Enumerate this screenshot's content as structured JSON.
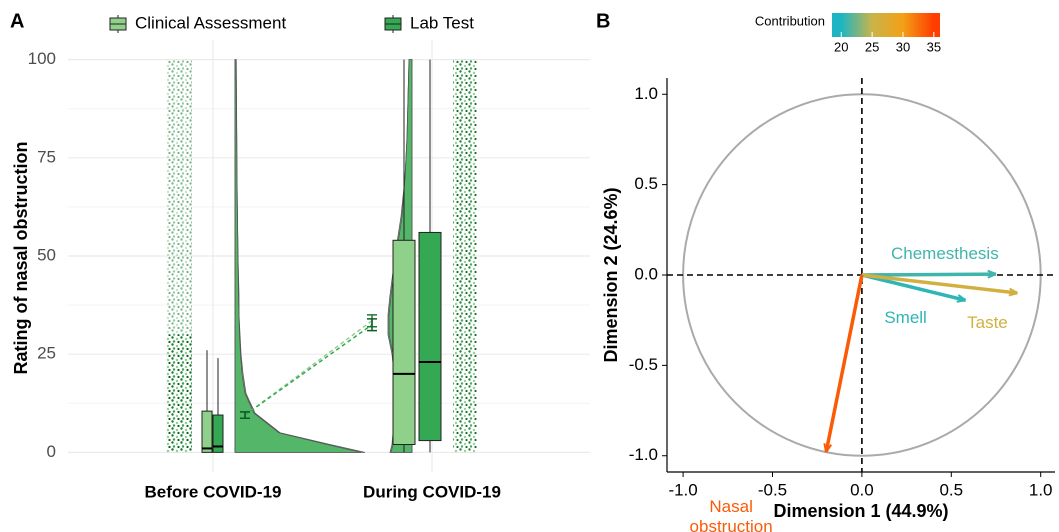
{
  "chart_data": [
    {
      "type": "raincloud",
      "panel_label": "A",
      "ylabel": "Rating of nasal obstruction",
      "categories": [
        "Before COVID-19",
        "During COVID-19"
      ],
      "ylim": [
        -5,
        105
      ],
      "yticks": [
        0,
        25,
        50,
        75,
        100
      ],
      "grid": true,
      "legend": "top",
      "density_y": [
        0,
        2,
        5,
        10,
        15,
        20,
        25,
        30,
        35,
        40,
        50,
        60,
        70,
        80,
        90,
        100
      ],
      "series": [
        {
          "name": "Clinical Assessment",
          "color": "#8fd18a",
          "point_color": "#1e7b34",
          "whisker_low": [
            0,
            0
          ],
          "q1": [
            0,
            2
          ],
          "median": [
            1,
            20
          ],
          "q3": [
            10.5,
            54
          ],
          "whisker_high": [
            26,
            100
          ],
          "mean": [
            9.5,
            33.5
          ],
          "mean_error": [
            0.8,
            1.5
          ],
          "density": [
            [
              130,
              95,
              45,
              20,
              11,
              8,
              6,
              5,
              4,
              4,
              3,
              2.5,
              2,
              1.8,
              1.5,
              1.2
            ],
            [
              22,
              20,
              19,
              19,
              18,
              18,
              20,
              24,
              24,
              22,
              17,
              11,
              7,
              5,
              4,
              3
            ]
          ]
        },
        {
          "name": "Lab Test",
          "color": "#35a853",
          "point_color": "#0f5e26",
          "whisker_low": [
            0,
            0
          ],
          "q1": [
            0,
            3
          ],
          "median": [
            1.5,
            23
          ],
          "q3": [
            9.5,
            56
          ],
          "whisker_high": [
            24,
            100
          ],
          "mean": [
            9.5,
            32.5
          ],
          "mean_error": [
            0.8,
            1.5
          ],
          "density": [
            [
              126,
              92,
              44,
              19,
              10,
              7,
              5.5,
              4.5,
              4,
              3.5,
              3,
              2.4,
              2,
              1.7,
              1.4,
              1.1
            ],
            [
              21,
              19,
              18,
              18,
              17,
              17,
              19,
              23,
              23,
              21,
              16,
              10,
              7,
              5,
              4,
              3
            ]
          ]
        }
      ]
    },
    {
      "type": "vector",
      "panel_label": "B",
      "xlabel": "Dimension 1 (44.9%)",
      "ylabel": "Dimension 2 (24.6%)",
      "xlim": [
        -1.09,
        1.08
      ],
      "ylim": [
        -1.09,
        1.09
      ],
      "xticks": [
        {
          "value": -1,
          "label": "-1.0"
        },
        -0.5,
        {
          "value": 0,
          "label": "0.0"
        },
        0.5,
        {
          "value": 1,
          "label": "1.0"
        }
      ],
      "yticks": [
        {
          "value": -1,
          "label": "-1.0"
        },
        -0.5,
        {
          "value": 0,
          "label": "0.0"
        },
        0.5,
        {
          "value": 1,
          "label": "1.0"
        }
      ],
      "colorbar_title": "Contribution",
      "colorbar_lim": [
        18.5,
        36
      ],
      "colorbar_ticks": [
        20,
        25,
        30,
        35
      ],
      "colorbar_colors": [
        "#1db5c4",
        "#c9b44a",
        "#f3a016",
        "#ff3d00"
      ],
      "series": [
        {
          "name": "Chemesthesis",
          "x": 0.75,
          "y": 0.005,
          "contribution": 21
        },
        {
          "name": "Smell",
          "x": 0.58,
          "y": -0.14,
          "contribution": 20.5
        },
        {
          "name": "Taste",
          "x": 0.87,
          "y": -0.1,
          "contribution": 26
        },
        {
          "name": "Nasal obstruction",
          "x": -0.2,
          "y": -0.98,
          "contribution": 33.5
        }
      ]
    }
  ]
}
